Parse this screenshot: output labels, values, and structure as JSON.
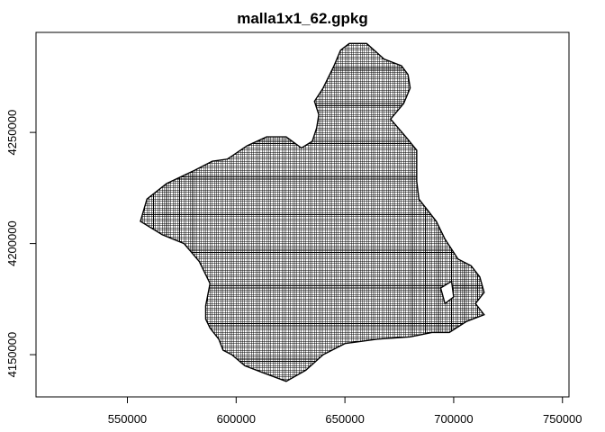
{
  "chart_data": {
    "type": "map",
    "title": "malla1x1_62.gpkg",
    "xlabel": "",
    "ylabel": "",
    "x_ticks": [
      550000,
      600000,
      650000,
      700000,
      750000
    ],
    "y_ticks": [
      4150000,
      4200000,
      4250000
    ],
    "x_tick_labels": [
      "550000",
      "600000",
      "650000",
      "700000",
      "750000"
    ],
    "y_tick_labels": [
      "4150000",
      "4200000",
      "4250000"
    ],
    "xlim": [
      508000,
      753000
    ],
    "ylim": [
      4131000,
      4295000
    ],
    "grid": false,
    "cell_size": 1000,
    "cell_stroke": "#000000",
    "cell_fill": "none",
    "region_outline": [
      [
        652000,
        4290000
      ],
      [
        660000,
        4290000
      ],
      [
        668000,
        4283000
      ],
      [
        676000,
        4280000
      ],
      [
        679000,
        4276000
      ],
      [
        680000,
        4270000
      ],
      [
        677000,
        4263000
      ],
      [
        671000,
        4256000
      ],
      [
        678000,
        4248000
      ],
      [
        683000,
        4242000
      ],
      [
        683000,
        4228000
      ],
      [
        684000,
        4220000
      ],
      [
        692000,
        4210000
      ],
      [
        696000,
        4202000
      ],
      [
        702000,
        4193000
      ],
      [
        708000,
        4190000
      ],
      [
        712000,
        4185000
      ],
      [
        714000,
        4178000
      ],
      [
        710000,
        4173000
      ],
      [
        714000,
        4168000
      ],
      [
        706000,
        4165000
      ],
      [
        698000,
        4160000
      ],
      [
        690000,
        4160000
      ],
      [
        680000,
        4158000
      ],
      [
        665000,
        4157000
      ],
      [
        650000,
        4155000
      ],
      [
        640000,
        4150000
      ],
      [
        632000,
        4143000
      ],
      [
        623000,
        4138000
      ],
      [
        612000,
        4142000
      ],
      [
        604000,
        4145000
      ],
      [
        598000,
        4150000
      ],
      [
        594000,
        4152000
      ],
      [
        592000,
        4157000
      ],
      [
        588000,
        4162000
      ],
      [
        586000,
        4166000
      ],
      [
        586000,
        4172000
      ],
      [
        588000,
        4182000
      ],
      [
        583000,
        4192000
      ],
      [
        576000,
        4200000
      ],
      [
        566000,
        4204000
      ],
      [
        556000,
        4210000
      ],
      [
        559000,
        4220000
      ],
      [
        568000,
        4227000
      ],
      [
        581000,
        4233000
      ],
      [
        589000,
        4237000
      ],
      [
        596000,
        4238000
      ],
      [
        605000,
        4244000
      ],
      [
        614000,
        4248000
      ],
      [
        623000,
        4248000
      ],
      [
        630000,
        4243000
      ],
      [
        635000,
        4246000
      ],
      [
        637000,
        4252000
      ],
      [
        638000,
        4258000
      ],
      [
        636000,
        4264000
      ],
      [
        640000,
        4270000
      ],
      [
        645000,
        4280000
      ],
      [
        648000,
        4287000
      ]
    ],
    "hole_outline": [
      [
        694000,
        4180000
      ],
      [
        699000,
        4183000
      ],
      [
        700000,
        4176000
      ],
      [
        696000,
        4173000
      ]
    ]
  }
}
